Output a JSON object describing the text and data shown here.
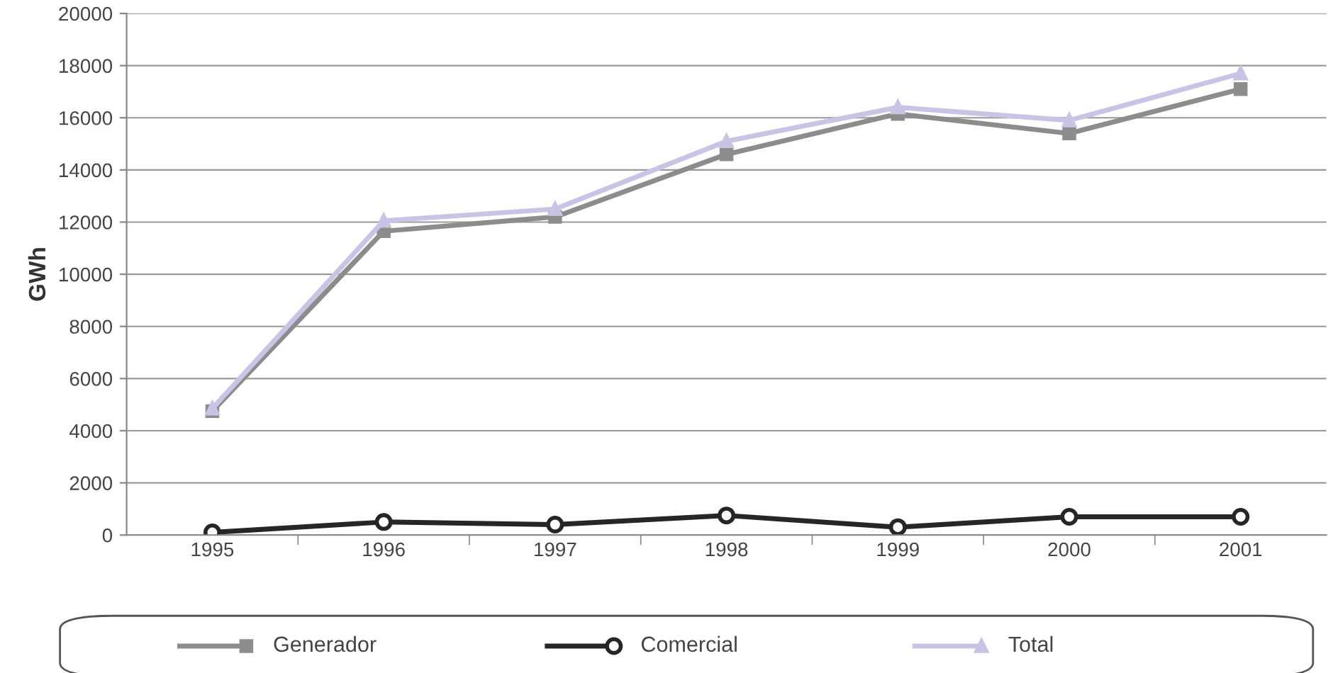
{
  "chart_data": {
    "type": "line",
    "ylabel": "GWh",
    "categories": [
      "1995",
      "1996",
      "1997",
      "1998",
      "1999",
      "2000",
      "2001"
    ],
    "series": [
      {
        "name": "Generador",
        "color": "#8c8c8c",
        "marker": "square",
        "values": [
          4750,
          11650,
          12200,
          14600,
          16150,
          15400,
          17100
        ]
      },
      {
        "name": "Comercial",
        "color": "#262626",
        "marker": "circle",
        "values": [
          100,
          500,
          400,
          750,
          300,
          700,
          700
        ]
      },
      {
        "name": "Total",
        "color": "#c8c4e6",
        "marker": "triangle",
        "values": [
          4850,
          12050,
          12500,
          15100,
          16400,
          15900,
          17700
        ]
      }
    ],
    "ylim": [
      0,
      20000
    ],
    "yticks": [
      0,
      2000,
      4000,
      6000,
      8000,
      10000,
      12000,
      14000,
      16000,
      18000,
      20000
    ],
    "grid": "y",
    "legend": "bottom"
  }
}
